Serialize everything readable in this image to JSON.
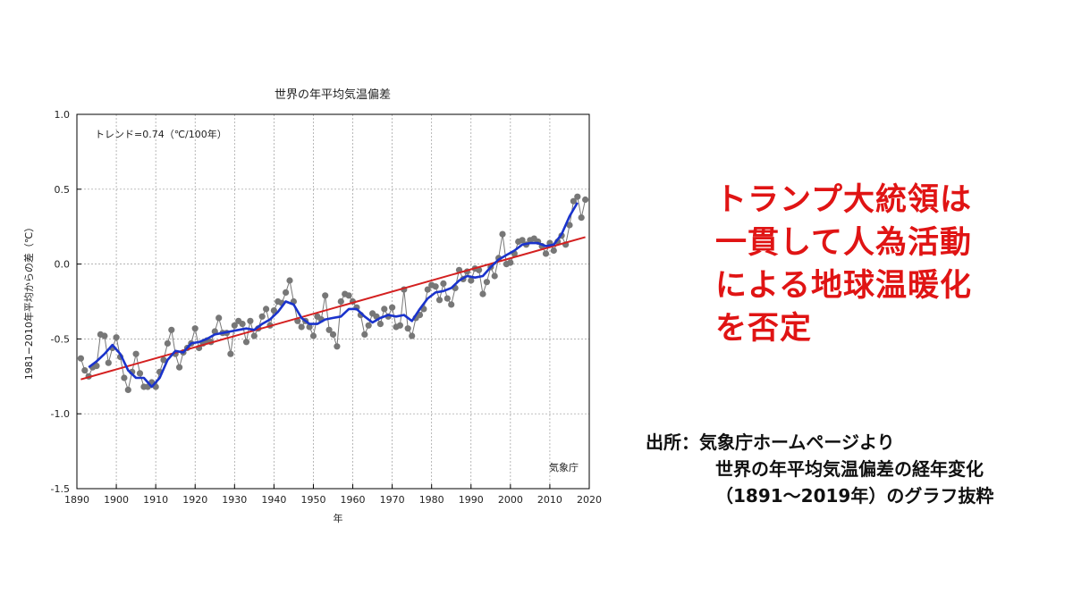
{
  "headline": {
    "lines": [
      "トランプ大統領は",
      "一貫して人為活動",
      "による地球温暖化",
      "を否定"
    ],
    "color": "#e01414"
  },
  "source": {
    "line1": "出所：気象庁ホームページより",
    "line2": "世界の年平均気温偏差の経年変化",
    "line3": "（1891～2019年）のグラフ抜粋"
  },
  "chart_data": {
    "type": "line",
    "title": "世界の年平均気温偏差",
    "xlabel": "年",
    "ylabel": "1981−2010年平均からの差（℃）",
    "annotation": "トレンド=0.74（℃/100年）",
    "credit": "気象庁",
    "xlim": [
      1890,
      2020
    ],
    "ylim": [
      -1.5,
      1.0
    ],
    "xticks": [
      "1890",
      "1900",
      "1910",
      "1920",
      "1930",
      "1940",
      "1950",
      "1960",
      "1970",
      "1980",
      "1990",
      "2000",
      "2010",
      "2020"
    ],
    "yticks": [
      "1.0",
      "0.5",
      "0.0",
      "-0.5",
      "-1.0",
      "-1.5"
    ],
    "grid": true,
    "series": [
      {
        "role": "annual",
        "color": "#777777",
        "x": [
          1891,
          1892,
          1893,
          1894,
          1895,
          1896,
          1897,
          1898,
          1899,
          1900,
          1901,
          1902,
          1903,
          1904,
          1905,
          1906,
          1907,
          1908,
          1909,
          1910,
          1911,
          1912,
          1913,
          1914,
          1915,
          1916,
          1917,
          1918,
          1919,
          1920,
          1921,
          1922,
          1923,
          1924,
          1925,
          1926,
          1927,
          1928,
          1929,
          1930,
          1931,
          1932,
          1933,
          1934,
          1935,
          1936,
          1937,
          1938,
          1939,
          1940,
          1941,
          1942,
          1943,
          1944,
          1945,
          1946,
          1947,
          1948,
          1949,
          1950,
          1951,
          1952,
          1953,
          1954,
          1955,
          1956,
          1957,
          1958,
          1959,
          1960,
          1961,
          1962,
          1963,
          1964,
          1965,
          1966,
          1967,
          1968,
          1969,
          1970,
          1971,
          1972,
          1973,
          1974,
          1975,
          1976,
          1977,
          1978,
          1979,
          1980,
          1981,
          1982,
          1983,
          1984,
          1985,
          1986,
          1987,
          1988,
          1989,
          1990,
          1991,
          1992,
          1993,
          1994,
          1995,
          1996,
          1997,
          1998,
          1999,
          2000,
          2001,
          2002,
          2003,
          2004,
          2005,
          2006,
          2007,
          2008,
          2009,
          2010,
          2011,
          2012,
          2013,
          2014,
          2015,
          2016,
          2017,
          2018,
          2019
        ],
        "y": [
          -0.63,
          -0.71,
          -0.75,
          -0.69,
          -0.68,
          -0.47,
          -0.48,
          -0.66,
          -0.56,
          -0.49,
          -0.62,
          -0.76,
          -0.84,
          -0.72,
          -0.6,
          -0.73,
          -0.82,
          -0.82,
          -0.79,
          -0.82,
          -0.72,
          -0.64,
          -0.53,
          -0.44,
          -0.6,
          -0.69,
          -0.59,
          -0.56,
          -0.53,
          -0.43,
          -0.56,
          -0.53,
          -0.51,
          -0.52,
          -0.45,
          -0.36,
          -0.46,
          -0.46,
          -0.6,
          -0.41,
          -0.38,
          -0.4,
          -0.52,
          -0.38,
          -0.48,
          -0.43,
          -0.35,
          -0.3,
          -0.41,
          -0.31,
          -0.25,
          -0.26,
          -0.19,
          -0.11,
          -0.25,
          -0.38,
          -0.42,
          -0.38,
          -0.42,
          -0.48,
          -0.35,
          -0.37,
          -0.21,
          -0.44,
          -0.47,
          -0.55,
          -0.25,
          -0.2,
          -0.21,
          -0.25,
          -0.29,
          -0.34,
          -0.47,
          -0.41,
          -0.33,
          -0.35,
          -0.4,
          -0.3,
          -0.35,
          -0.29,
          -0.42,
          -0.41,
          -0.17,
          -0.43,
          -0.48,
          -0.36,
          -0.34,
          -0.3,
          -0.17,
          -0.14,
          -0.15,
          -0.24,
          -0.13,
          -0.23,
          -0.27,
          -0.16,
          -0.04,
          -0.1,
          -0.05,
          -0.11,
          -0.03,
          -0.04,
          -0.2,
          -0.12,
          -0.02,
          -0.08,
          0.04,
          0.2,
          0.0,
          0.01,
          0.07,
          0.15,
          0.16,
          0.13,
          0.16,
          0.17,
          0.15,
          0.12,
          0.07,
          0.14,
          0.09,
          0.15,
          0.19,
          0.13,
          0.26,
          0.42,
          0.45,
          0.31,
          0.43
        ]
      },
      {
        "role": "5-year running mean",
        "color": "#1a33cc",
        "x": [
          1893,
          1895,
          1897,
          1899,
          1901,
          1903,
          1905,
          1907,
          1909,
          1911,
          1913,
          1915,
          1917,
          1919,
          1921,
          1923,
          1925,
          1927,
          1929,
          1931,
          1933,
          1935,
          1937,
          1939,
          1941,
          1943,
          1945,
          1947,
          1949,
          1951,
          1953,
          1955,
          1957,
          1959,
          1961,
          1963,
          1965,
          1967,
          1969,
          1971,
          1973,
          1975,
          1977,
          1979,
          1981,
          1983,
          1985,
          1987,
          1989,
          1991,
          1993,
          1995,
          1997,
          1999,
          2001,
          2003,
          2005,
          2007,
          2009,
          2011,
          2013,
          2015,
          2017
        ],
        "y": [
          -0.69,
          -0.65,
          -0.6,
          -0.54,
          -0.6,
          -0.71,
          -0.76,
          -0.76,
          -0.82,
          -0.76,
          -0.64,
          -0.58,
          -0.59,
          -0.53,
          -0.52,
          -0.5,
          -0.47,
          -0.46,
          -0.45,
          -0.44,
          -0.43,
          -0.44,
          -0.4,
          -0.37,
          -0.32,
          -0.25,
          -0.27,
          -0.36,
          -0.4,
          -0.4,
          -0.37,
          -0.36,
          -0.35,
          -0.3,
          -0.3,
          -0.35,
          -0.39,
          -0.36,
          -0.34,
          -0.35,
          -0.34,
          -0.38,
          -0.3,
          -0.23,
          -0.19,
          -0.18,
          -0.16,
          -0.11,
          -0.08,
          -0.09,
          -0.08,
          -0.02,
          0.03,
          0.06,
          0.09,
          0.13,
          0.14,
          0.14,
          0.12,
          0.13,
          0.2,
          0.32,
          0.41
        ]
      },
      {
        "role": "trend",
        "color": "#d42020",
        "x": [
          1891,
          2019
        ],
        "y": [
          -0.77,
          0.18
        ]
      }
    ]
  }
}
